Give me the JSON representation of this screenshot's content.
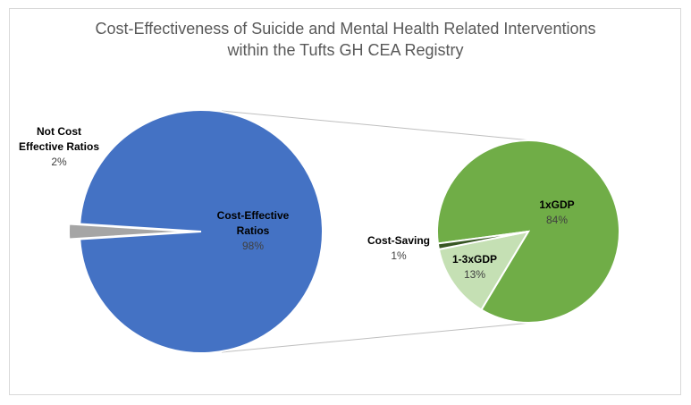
{
  "chart_data": {
    "type": "pie",
    "subtype": "pie-of-pie",
    "title_lines": [
      "Cost-Effectiveness of Suicide and Mental Health Related Interventions",
      "within the Tufts GH CEA Registry"
    ],
    "primary": {
      "slices": [
        {
          "label_lines": [
            "Cost-Effective",
            "Ratios"
          ],
          "value_label": "98%",
          "value": 98,
          "color": "#4472c4"
        },
        {
          "label_lines": [
            "Not Cost",
            "Effective Ratios"
          ],
          "value_label": "2%",
          "value": 2,
          "color": "#a5a5a5"
        }
      ]
    },
    "secondary": {
      "slices": [
        {
          "label_lines": [
            "1xGDP"
          ],
          "value_label": "84%",
          "value": 84,
          "color": "#70ad47"
        },
        {
          "label_lines": [
            "1-3xGDP"
          ],
          "value_label": "13%",
          "value": 13,
          "color": "#c5e0b4"
        },
        {
          "label_lines": [
            "Cost-Saving"
          ],
          "value_label": "1%",
          "value": 1,
          "color": "#375623"
        }
      ]
    },
    "connector_color": "#bfbfbf",
    "legend": "none"
  }
}
